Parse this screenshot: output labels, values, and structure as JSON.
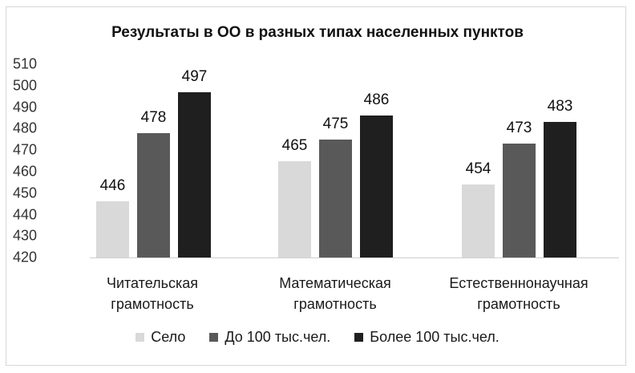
{
  "chart_data": {
    "type": "bar",
    "title": "Результаты в ОО в разных типах населенных пунктов",
    "xlabel": "",
    "ylabel": "",
    "ylim": [
      420,
      510
    ],
    "yticks": [
      "510",
      "500",
      "490",
      "480",
      "470",
      "460",
      "450",
      "440",
      "430",
      "420"
    ],
    "grid": false,
    "legend_position": "bottom",
    "categories": [
      "Читательская грамотность",
      "Математическая грамотность",
      "Естественнонаучная грамотность"
    ],
    "category_lines": [
      [
        "Читательская",
        "грамотность"
      ],
      [
        "Математическая",
        "грамотность"
      ],
      [
        "Естественнонаучная",
        "грамотность"
      ]
    ],
    "series": [
      {
        "name": "Село",
        "color": "#d9d9d9",
        "values": [
          446,
          465,
          454
        ]
      },
      {
        "name": "До 100 тыс.чел.",
        "color": "#595959",
        "values": [
          478,
          475,
          473
        ]
      },
      {
        "name": "Более 100 тыс.чел.",
        "color": "#1f1f1f",
        "values": [
          497,
          486,
          483
        ]
      }
    ],
    "value_labels": [
      [
        "446",
        "465",
        "454"
      ],
      [
        "478",
        "475",
        "473"
      ],
      [
        "497",
        "486",
        "483"
      ]
    ]
  }
}
